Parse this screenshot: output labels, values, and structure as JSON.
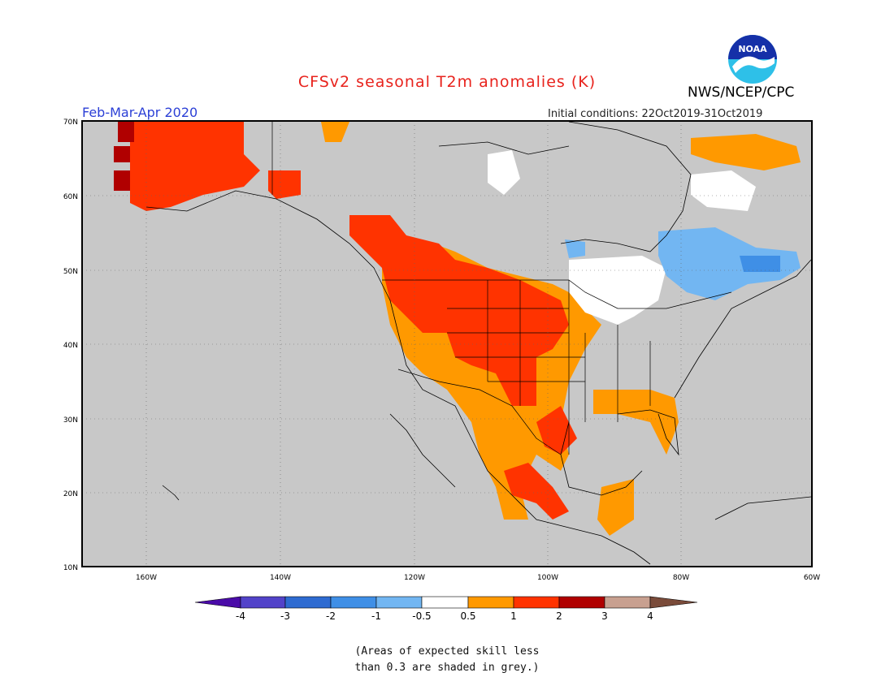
{
  "header": {
    "title": "CFSv2 seasonal T2m anomalies (K)",
    "org": "NWS/NCEP/CPC",
    "period": "Feb-Mar-Apr 2020",
    "initial_conditions": "Initial conditions: 22Oct2019-31Oct2019",
    "logo_text": "NOAA"
  },
  "map": {
    "lat_labels": [
      "70N",
      "60N",
      "50N",
      "40N",
      "30N",
      "20N",
      "10N"
    ],
    "lon_labels": [
      "160W",
      "140W",
      "120W",
      "100W",
      "80W",
      "60W"
    ],
    "ocean_color": "#c8c8c8",
    "border_color": "#000000"
  },
  "colorbar": {
    "tick_labels": [
      "-4",
      "-3",
      "-2",
      "-1",
      "-0.5",
      "0.5",
      "1",
      "2",
      "3",
      "4"
    ],
    "colors": [
      "#4a0ba8",
      "#5243c9",
      "#2e6bd1",
      "#3f8fe6",
      "#72b6f2",
      "#ffffff",
      "#ff9900",
      "#ff3300",
      "#b00000",
      "#c8a090",
      "#7a4b3a"
    ]
  },
  "footnote": {
    "line1": "(Areas of expected skill less",
    "line2": "than 0.3 are shaded in grey.)"
  }
}
